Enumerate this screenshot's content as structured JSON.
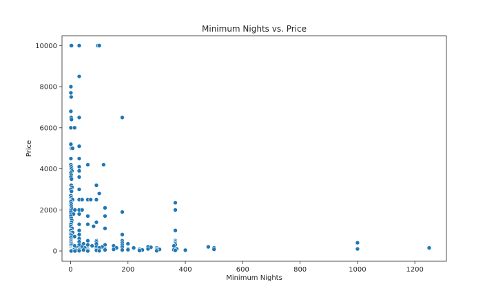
{
  "chart_data": {
    "type": "scatter",
    "title": "Minimum Nights vs. Price",
    "xlabel": "Minimum Nights",
    "ylabel": "Price",
    "xlim": [
      -30,
      1310
    ],
    "ylim": [
      -500,
      10480
    ],
    "xticks": [
      0,
      200,
      400,
      600,
      800,
      1000,
      1200
    ],
    "yticks": [
      0,
      2000,
      4000,
      6000,
      8000,
      10000
    ],
    "grid": false,
    "legend": "none",
    "color": "#1f77b4",
    "points": [
      [
        1,
        10000
      ],
      [
        3,
        10000
      ],
      [
        30,
        10000
      ],
      [
        95,
        10000
      ],
      [
        100,
        10000
      ],
      [
        30,
        8500
      ],
      [
        1,
        8000
      ],
      [
        1,
        7700
      ],
      [
        2,
        7500
      ],
      [
        1,
        6800
      ],
      [
        2,
        6500
      ],
      [
        3,
        6400
      ],
      [
        30,
        6500
      ],
      [
        180,
        6500
      ],
      [
        1,
        6000
      ],
      [
        14,
        6000
      ],
      [
        1,
        5200
      ],
      [
        3,
        5000
      ],
      [
        7,
        5000
      ],
      [
        30,
        5100
      ],
      [
        30,
        4500
      ],
      [
        1,
        4500
      ],
      [
        1,
        4200
      ],
      [
        2,
        4100
      ],
      [
        3,
        4000
      ],
      [
        60,
        4200
      ],
      [
        115,
        4200
      ],
      [
        30,
        4100
      ],
      [
        5,
        3900
      ],
      [
        30,
        3900
      ],
      [
        1,
        3800
      ],
      [
        2,
        3700
      ],
      [
        1,
        3600
      ],
      [
        3,
        3500
      ],
      [
        30,
        3600
      ],
      [
        2,
        3200
      ],
      [
        90,
        3200
      ],
      [
        5,
        3100
      ],
      [
        1,
        3000
      ],
      [
        30,
        3000
      ],
      [
        3,
        2900
      ],
      [
        100,
        2800
      ],
      [
        1,
        2700
      ],
      [
        2,
        2600
      ],
      [
        4,
        2500
      ],
      [
        7,
        2500
      ],
      [
        30,
        2500
      ],
      [
        40,
        2500
      ],
      [
        60,
        2500
      ],
      [
        70,
        2500
      ],
      [
        90,
        2500
      ],
      [
        1,
        2400
      ],
      [
        2,
        2300
      ],
      [
        365,
        2350
      ],
      [
        2,
        2200
      ],
      [
        3,
        2100
      ],
      [
        1,
        2000
      ],
      [
        5,
        2000
      ],
      [
        15,
        2000
      ],
      [
        30,
        2000
      ],
      [
        40,
        2000
      ],
      [
        120,
        2100
      ],
      [
        365,
        2000
      ],
      [
        1,
        1900
      ],
      [
        2,
        1800
      ],
      [
        180,
        1900
      ],
      [
        10,
        1800
      ],
      [
        30,
        1800
      ],
      [
        1,
        1700
      ],
      [
        2,
        1600
      ],
      [
        4,
        1500
      ],
      [
        60,
        1700
      ],
      [
        120,
        1700
      ],
      [
        3,
        1400
      ],
      [
        90,
        1400
      ],
      [
        1,
        1300
      ],
      [
        30,
        1300
      ],
      [
        60,
        1300
      ],
      [
        80,
        1200
      ],
      [
        1,
        1200
      ],
      [
        5,
        1100
      ],
      [
        120,
        1100
      ],
      [
        365,
        1000
      ],
      [
        30,
        1000
      ],
      [
        1,
        1000
      ],
      [
        2,
        900
      ],
      [
        7,
        900
      ],
      [
        1,
        800
      ],
      [
        30,
        800
      ],
      [
        180,
        800
      ],
      [
        3,
        750
      ],
      [
        14,
        700
      ],
      [
        1,
        650
      ],
      [
        30,
        600
      ],
      [
        2,
        550
      ],
      [
        1,
        500
      ],
      [
        60,
        500
      ],
      [
        90,
        500
      ],
      [
        180,
        500
      ],
      [
        365,
        500
      ],
      [
        2,
        450
      ],
      [
        30,
        450
      ],
      [
        90,
        450
      ],
      [
        365,
        450
      ],
      [
        1,
        400
      ],
      [
        180,
        400
      ],
      [
        365,
        400
      ],
      [
        1000,
        400
      ],
      [
        3,
        350
      ],
      [
        45,
        350
      ],
      [
        90,
        350
      ],
      [
        200,
        350
      ],
      [
        365,
        350
      ],
      [
        1,
        300
      ],
      [
        30,
        300
      ],
      [
        60,
        300
      ],
      [
        120,
        300
      ],
      [
        180,
        300
      ],
      [
        365,
        300
      ],
      [
        2,
        280
      ],
      [
        14,
        250
      ],
      [
        75,
        250
      ],
      [
        150,
        250
      ],
      [
        270,
        200
      ],
      [
        360,
        250
      ],
      [
        1,
        200
      ],
      [
        40,
        200
      ],
      [
        90,
        200
      ],
      [
        110,
        200
      ],
      [
        180,
        200
      ],
      [
        280,
        180
      ],
      [
        480,
        200
      ],
      [
        1,
        150
      ],
      [
        25,
        150
      ],
      [
        50,
        150
      ],
      [
        100,
        150
      ],
      [
        160,
        150
      ],
      [
        220,
        150
      ],
      [
        300,
        150
      ],
      [
        500,
        150
      ],
      [
        1250,
        150
      ],
      [
        1,
        120
      ],
      [
        30,
        100
      ],
      [
        120,
        100
      ],
      [
        200,
        100
      ],
      [
        270,
        100
      ],
      [
        300,
        100
      ],
      [
        370,
        100
      ],
      [
        1000,
        100
      ],
      [
        1,
        80
      ],
      [
        15,
        80
      ],
      [
        60,
        80
      ],
      [
        90,
        80
      ],
      [
        150,
        80
      ],
      [
        240,
        80
      ],
      [
        310,
        80
      ],
      [
        500,
        80
      ],
      [
        1,
        60
      ],
      [
        30,
        60
      ],
      [
        200,
        60
      ],
      [
        360,
        60
      ],
      [
        1,
        50
      ],
      [
        10,
        50
      ],
      [
        45,
        50
      ],
      [
        120,
        50
      ],
      [
        180,
        50
      ],
      [
        250,
        50
      ],
      [
        300,
        50
      ],
      [
        400,
        40
      ],
      [
        1,
        30
      ],
      [
        20,
        30
      ],
      [
        60,
        30
      ],
      [
        90,
        30
      ],
      [
        240,
        20
      ],
      [
        365,
        30
      ],
      [
        1,
        10
      ],
      [
        5,
        10
      ],
      [
        30,
        10
      ],
      [
        100,
        10
      ],
      [
        300,
        10
      ],
      [
        2,
        0
      ],
      [
        15,
        0
      ],
      [
        60,
        0
      ]
    ]
  }
}
